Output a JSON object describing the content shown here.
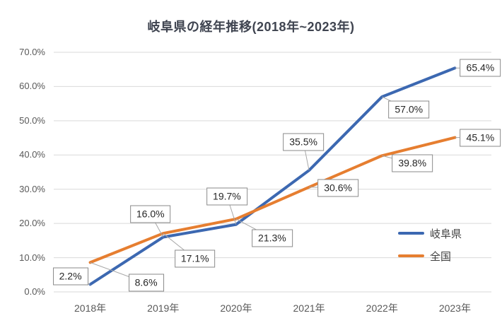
{
  "chart_data": {
    "type": "line",
    "title": "岐阜県の経年推移(2018年~2023年)",
    "categories": [
      "2018年",
      "2019年",
      "2020年",
      "2021年",
      "2022年",
      "2023年"
    ],
    "series": [
      {
        "name": "岐阜県",
        "color": "#3c68b1",
        "values": [
          2.2,
          16.0,
          19.7,
          35.5,
          57.0,
          65.4
        ],
        "labels": [
          "2.2%",
          "16.0%",
          "19.7%",
          "35.5%",
          "57.0%",
          "65.4%"
        ]
      },
      {
        "name": "全国",
        "color": "#e67e30",
        "values": [
          8.6,
          17.1,
          21.3,
          30.6,
          39.8,
          45.1
        ],
        "labels": [
          "8.6%",
          "17.1%",
          "21.3%",
          "30.6%",
          "39.8%",
          "45.1%"
        ]
      }
    ],
    "y_ticks": [
      "0.0%",
      "10.0%",
      "20.0%",
      "30.0%",
      "40.0%",
      "50.0%",
      "60.0%",
      "70.0%"
    ],
    "ylim": [
      0,
      70
    ],
    "grid": true,
    "legend_position": "inside-right",
    "colors": {
      "gridline": "#d9d9d9",
      "axis_text": "#595959",
      "callout_border": "#8a8a8a",
      "callout_text": "#262626",
      "title_text": "#3f4450",
      "leader_line": "#a6a6a6",
      "background": "#ffffff"
    }
  }
}
